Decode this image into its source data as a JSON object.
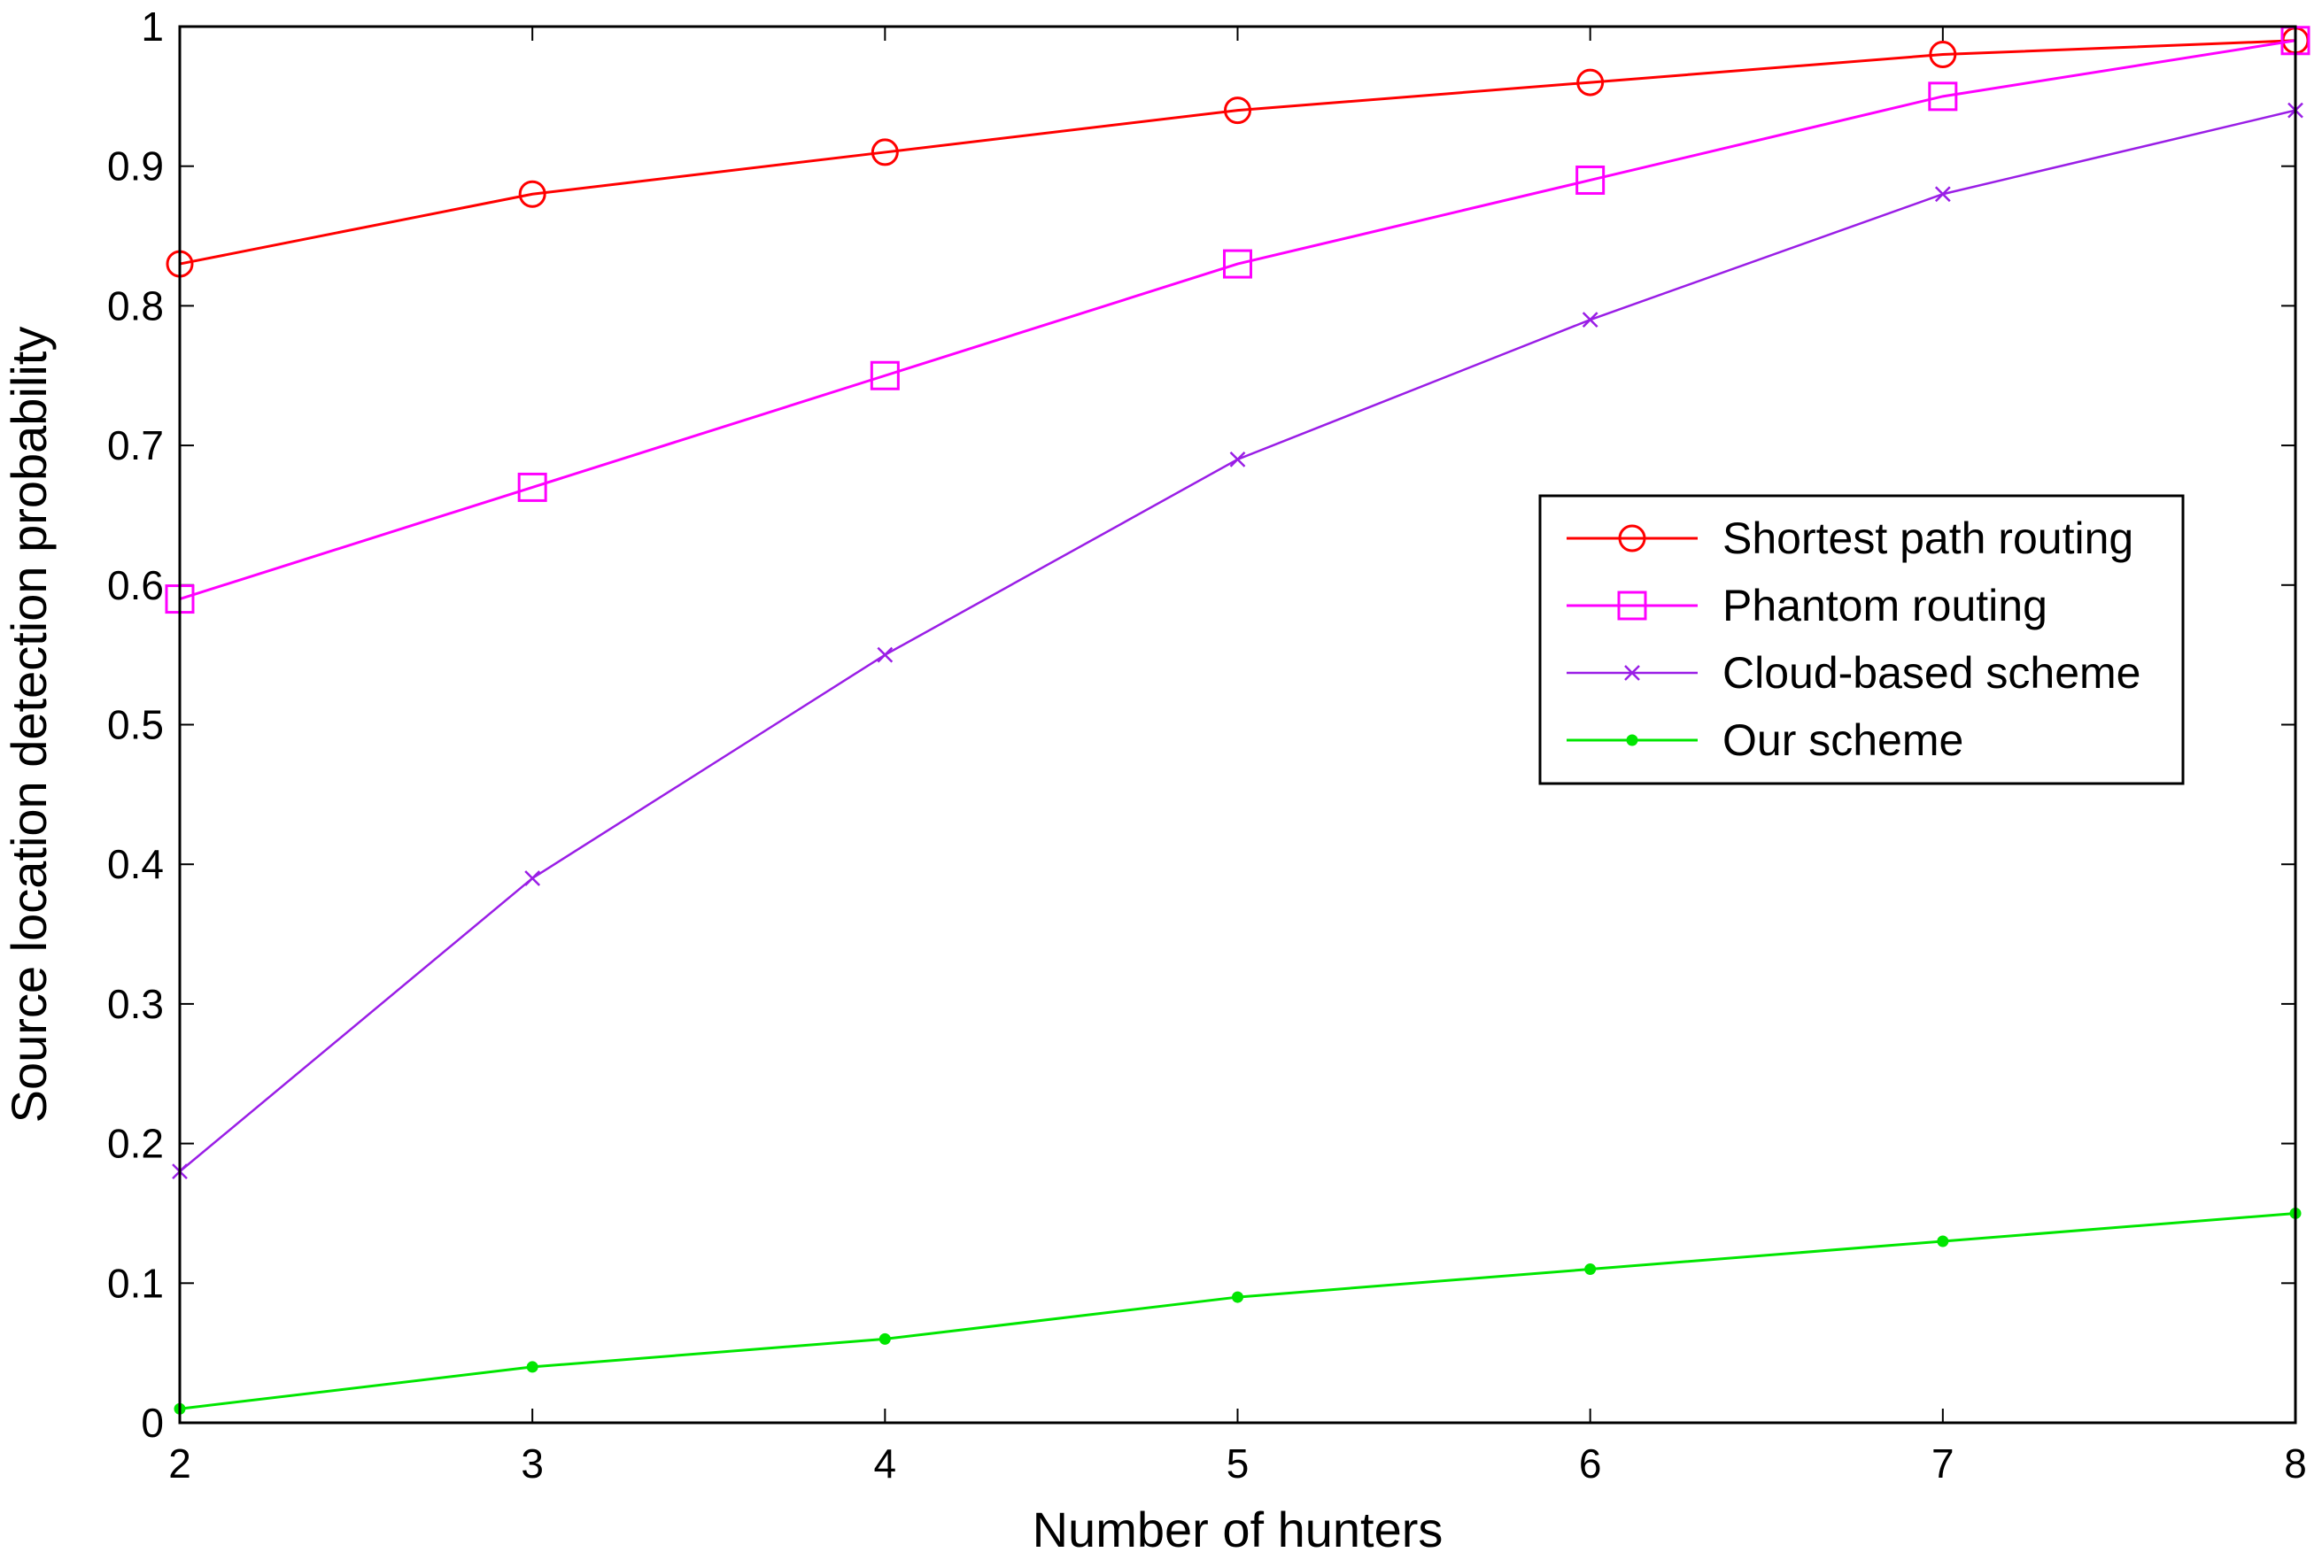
{
  "chart_data": {
    "type": "line",
    "title": "",
    "xlabel": "Number of hunters",
    "ylabel": "Source location detection probability",
    "x": [
      2,
      3,
      4,
      5,
      6,
      7,
      8
    ],
    "xlim": [
      2,
      8
    ],
    "ylim": [
      0,
      1
    ],
    "x_ticks": [
      "2",
      "3",
      "4",
      "5",
      "6",
      "7",
      "8"
    ],
    "y_ticks": [
      "0",
      "0.1",
      "0.2",
      "0.3",
      "0.4",
      "0.5",
      "0.6",
      "0.7",
      "0.8",
      "0.9",
      "1"
    ],
    "grid": false,
    "legend_position": "right",
    "series": [
      {
        "name": "Shortest path routing",
        "color": "#ff0000",
        "marker": "circle",
        "values": [
          0.83,
          0.88,
          0.91,
          0.94,
          0.96,
          0.98,
          0.99
        ]
      },
      {
        "name": "Phantom routing",
        "color": "#ff00ff",
        "marker": "square",
        "values": [
          0.59,
          0.67,
          0.75,
          0.83,
          0.89,
          0.95,
          0.99
        ]
      },
      {
        "name": "Cloud-based scheme",
        "color": "#9a1ee6",
        "marker": "x",
        "values": [
          0.18,
          0.39,
          0.55,
          0.69,
          0.79,
          0.88,
          0.94
        ]
      },
      {
        "name": "Our scheme",
        "color": "#00e600",
        "marker": "dot",
        "values": [
          0.01,
          0.04,
          0.06,
          0.09,
          0.11,
          0.13,
          0.15
        ]
      }
    ]
  }
}
